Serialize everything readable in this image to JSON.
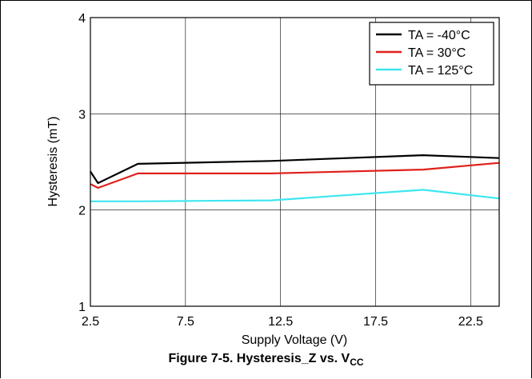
{
  "figure": {
    "caption_main": "Figure 7-5. Hysteresis_Z vs. V",
    "caption_sub": "CC"
  },
  "chart_data": {
    "type": "line",
    "title": "",
    "xlabel": "Supply Voltage (V)",
    "ylabel": "Hysteresis (mT)",
    "xlim": [
      2.5,
      24
    ],
    "ylim": [
      1,
      4
    ],
    "xticks": [
      2.5,
      7.5,
      12.5,
      17.5,
      22.5
    ],
    "xtick_labels": [
      "2.5",
      "7.5",
      "12.5",
      "17.5",
      "22.5"
    ],
    "yticks": [
      1,
      2,
      3,
      4
    ],
    "ytick_labels": [
      "1",
      "2",
      "3",
      "4"
    ],
    "grid": true,
    "legend_position": "top-right",
    "series": [
      {
        "name": "TA = -40°C",
        "color": "#000000",
        "x": [
          2.5,
          2.9,
          5,
          12,
          20,
          24
        ],
        "y": [
          2.4,
          2.28,
          2.48,
          2.51,
          2.57,
          2.54
        ]
      },
      {
        "name": "TA = 30°C",
        "color": "#e0201b",
        "x": [
          2.5,
          2.9,
          5,
          12,
          20,
          24
        ],
        "y": [
          2.27,
          2.23,
          2.38,
          2.38,
          2.42,
          2.49
        ]
      },
      {
        "name": "TA = 125°C",
        "color": "#3ee6f0",
        "x": [
          2.5,
          5,
          12,
          20,
          24
        ],
        "y": [
          2.09,
          2.09,
          2.1,
          2.21,
          2.12
        ]
      }
    ]
  }
}
